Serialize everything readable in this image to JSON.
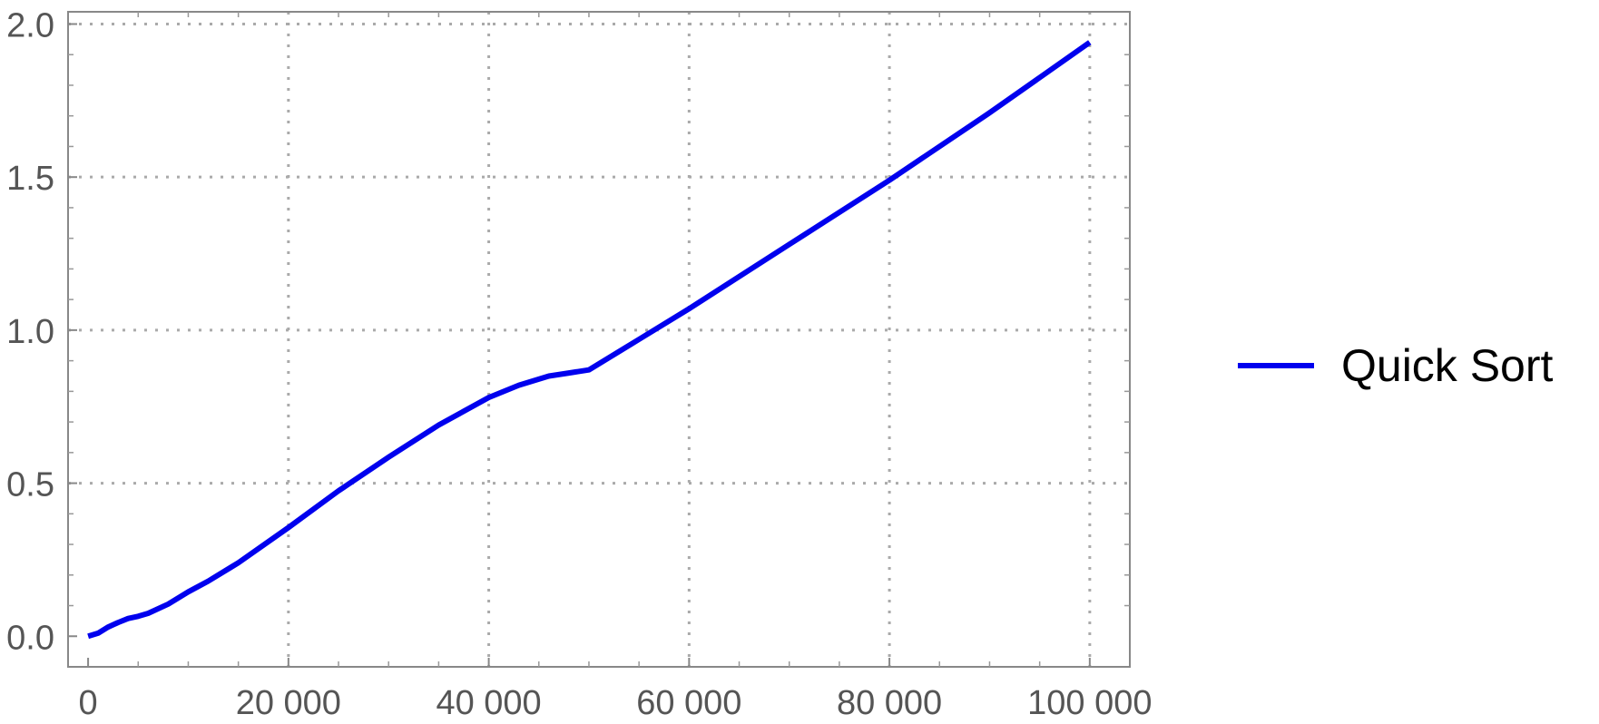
{
  "chart_data": {
    "type": "line",
    "title": "",
    "xlabel": "",
    "ylabel": "",
    "xlim": [
      0,
      104000
    ],
    "ylim": [
      -0.1,
      2.04
    ],
    "x_ticks": [
      0,
      20000,
      40000,
      60000,
      80000,
      100000
    ],
    "x_tick_labels": [
      "0",
      "20 000",
      "40 000",
      "60 000",
      "80 000",
      "100 000"
    ],
    "y_ticks": [
      0.0,
      0.5,
      1.0,
      1.5,
      2.0
    ],
    "y_tick_labels": [
      "0.0",
      "0.5",
      "1.0",
      "1.5",
      "2.0"
    ],
    "grid": true,
    "legend_position": "right",
    "series": [
      {
        "name": "Quick Sort",
        "color": "#0000ee",
        "x": [
          0,
          1000,
          2000,
          3000,
          4000,
          5000,
          6000,
          8000,
          10000,
          12000,
          15000,
          20000,
          25000,
          30000,
          35000,
          40000,
          43000,
          46000,
          48000,
          50000,
          55000,
          60000,
          70000,
          80000,
          90000,
          100000
        ],
        "y": [
          0.0,
          0.01,
          0.03,
          0.045,
          0.058,
          0.065,
          0.075,
          0.105,
          0.145,
          0.18,
          0.24,
          0.355,
          0.475,
          0.585,
          0.69,
          0.78,
          0.82,
          0.85,
          0.86,
          0.87,
          0.97,
          1.07,
          1.28,
          1.49,
          1.71,
          1.94
        ]
      }
    ]
  }
}
